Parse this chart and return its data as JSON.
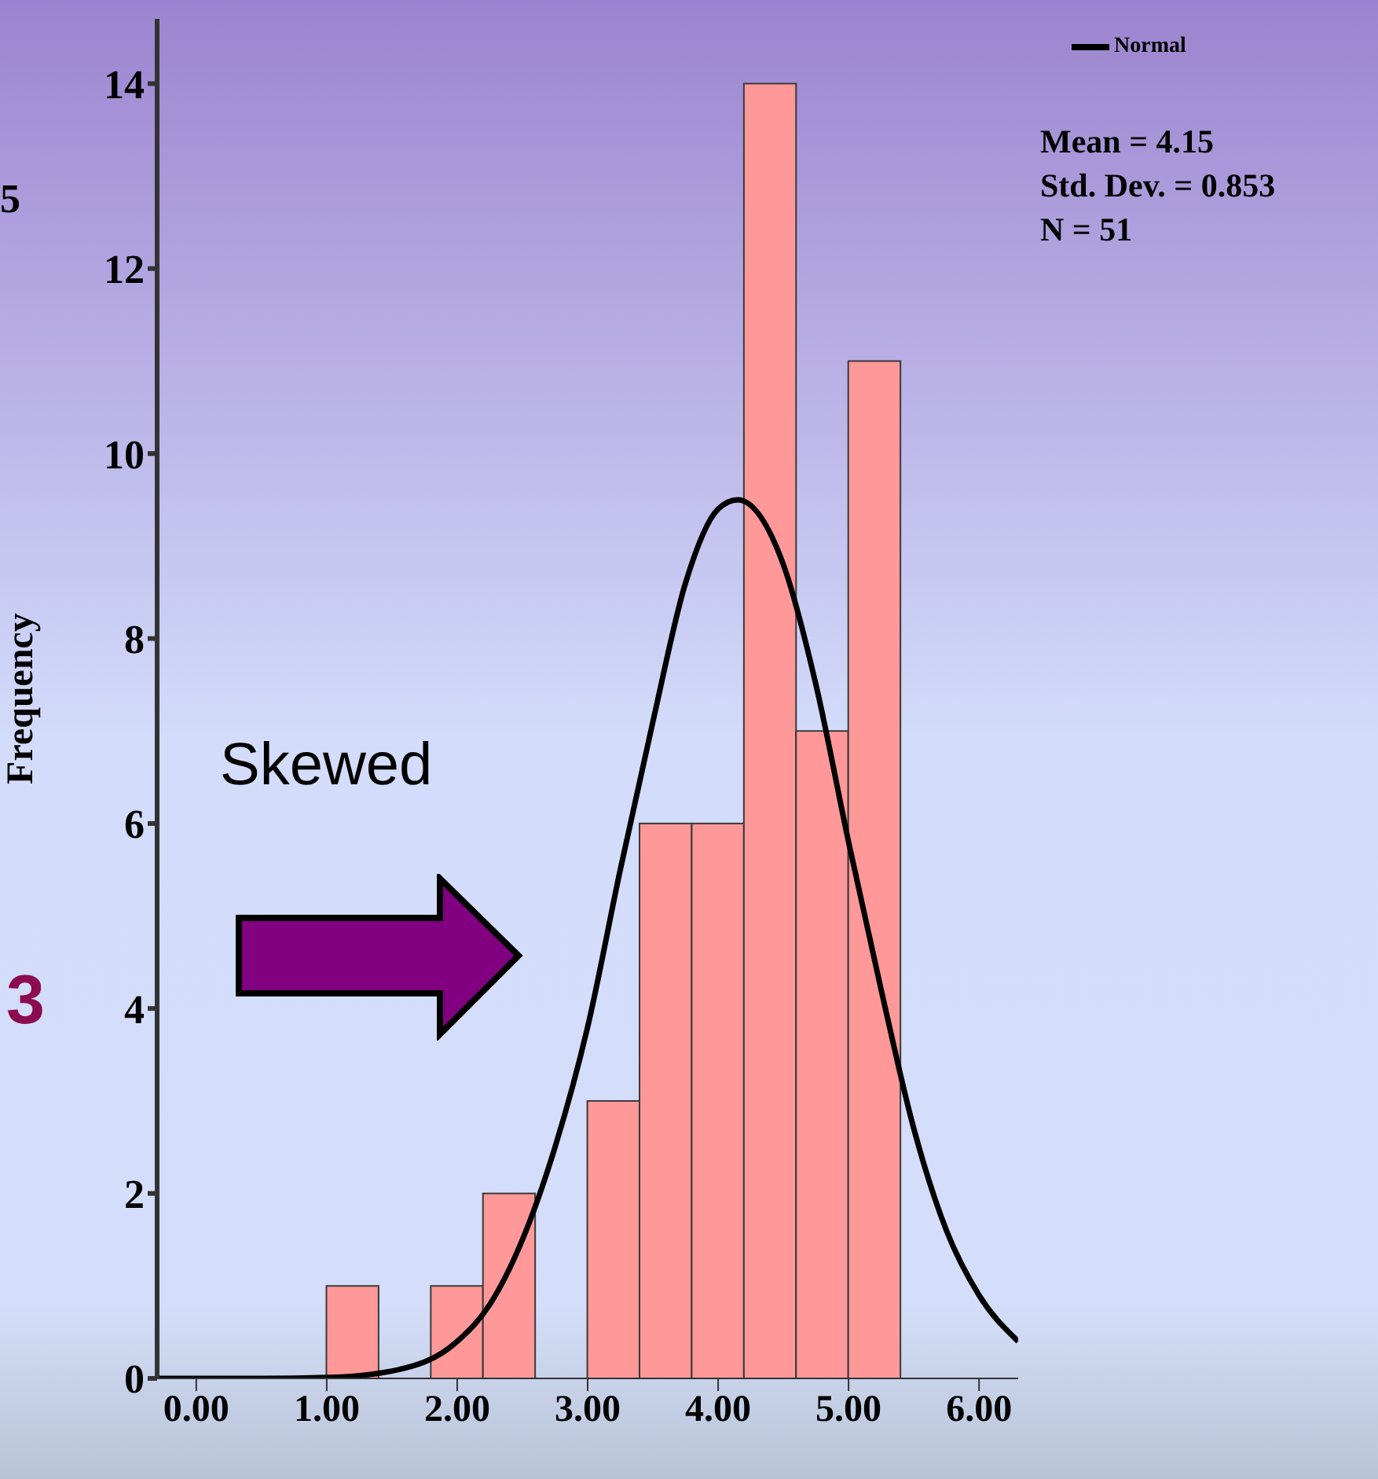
{
  "chart_data": {
    "type": "histogram",
    "ylabel": "Frequency",
    "bins": [
      1.0,
      1.4,
      1.8,
      2.2,
      2.6,
      3.0,
      3.4,
      3.8,
      4.2,
      4.6,
      5.0,
      5.4
    ],
    "values": [
      1,
      0,
      1,
      2,
      0,
      3,
      6,
      6,
      14,
      7,
      11
    ],
    "color": "#ff9999",
    "xlim": [
      -0.3,
      6.3
    ],
    "xticks": [
      {
        "value": 0,
        "label": "0.00"
      },
      {
        "value": 1,
        "label": "1.00"
      },
      {
        "value": 2,
        "label": "2.00"
      },
      {
        "value": 3,
        "label": "3.00"
      },
      {
        "value": 4,
        "label": "4.00"
      },
      {
        "value": 5,
        "label": "5.00"
      },
      {
        "value": 6,
        "label": "6.00"
      }
    ],
    "ylim": [
      0,
      14.7
    ],
    "yticks": [
      0,
      2,
      4,
      6,
      8,
      10,
      12,
      14
    ],
    "series": [
      {
        "name": "Normal",
        "type": "line",
        "color": "#000000",
        "x": [
          -0.3,
          0.5,
          1.0,
          1.5,
          2.0,
          2.25,
          2.5,
          2.75,
          3.0,
          3.25,
          3.5,
          3.75,
          4.0,
          4.15,
          4.5,
          4.75,
          5.0,
          5.25,
          5.5,
          5.75,
          6.0,
          6.3
        ],
        "values": [
          0,
          0,
          0.01,
          0.08,
          0.4,
          0.8,
          1.5,
          2.5,
          3.8,
          5.5,
          7.1,
          8.6,
          9.4,
          9.5,
          8.8,
          7.5,
          5.8,
          4.2,
          2.7,
          1.6,
          0.9,
          0.4
        ]
      }
    ],
    "marker": "none",
    "legend": "top right",
    "annotations": [
      "Mean = 4.15",
      "Std. Dev. = 0.853",
      "N = 51",
      "Skewed",
      "3",
      "5"
    ]
  }
}
